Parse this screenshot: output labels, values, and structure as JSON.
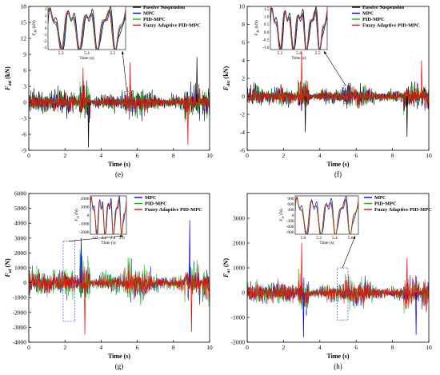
{
  "chart_data": [
    {
      "type": "line",
      "panel_label": "(e)",
      "ylabel": "F_dtf (kN)",
      "ylabel_main": "F",
      "ylabel_sub": "dtf",
      "ylabel_unit": "(kN)",
      "xlabel": "Time (s)",
      "xlim": [
        0,
        10
      ],
      "ylim": [
        -9,
        18
      ],
      "xticks": [
        0,
        2,
        4,
        6,
        8,
        10
      ],
      "yticks": [
        -9,
        -6,
        -3,
        0,
        3,
        6,
        9,
        12,
        15,
        18
      ],
      "legend": "top-right",
      "series": [
        {
          "name": "Passive Suspension",
          "color": "#000000",
          "amplitude": 3.2
        },
        {
          "name": "MPC",
          "color": "#0000ff",
          "amplitude": 2.4
        },
        {
          "name": "PID-MPC",
          "color": "#00cc00",
          "amplitude": 2.6
        },
        {
          "name": "Fuzzy Adaptive PID-MPC",
          "color": "#ff0000",
          "amplitude": 2.2
        }
      ],
      "peaks": [
        {
          "x": 3.0,
          "y": 6.5
        },
        {
          "x": 3.3,
          "y": -8.5
        },
        {
          "x": 5.6,
          "y": 7.5
        },
        {
          "x": 9.3,
          "y": 8.5
        },
        {
          "x": 8.8,
          "y": -8.0
        }
      ],
      "inset": {
        "ylabel_main": "F",
        "ylabel_sub": "dtf",
        "ylabel_unit": "(kN)",
        "xlabel": "Time (s)",
        "xlim": [
          5.25,
          5.55
        ],
        "ylim": [
          -3,
          4
        ],
        "xticks": [
          "5.3",
          "5.4",
          "5.5"
        ],
        "yticks": [
          "3",
          "2",
          "1",
          "0",
          "-1",
          "-2",
          "-3"
        ]
      },
      "zoom_box": {
        "x": [
          5.3,
          5.55
        ],
        "y": [
          -1.5,
          2.0
        ]
      }
    },
    {
      "type": "line",
      "panel_label": "(f)",
      "ylabel": "F_dtr (kN)",
      "ylabel_main": "F",
      "ylabel_sub": "dtr",
      "ylabel_unit": "(kN)",
      "xlabel": "Time (s)",
      "xlim": [
        0,
        10
      ],
      "ylim": [
        -6,
        10
      ],
      "xticks": [
        0,
        2,
        4,
        6,
        8,
        10
      ],
      "yticks": [
        -6,
        -4,
        -2,
        0,
        2,
        4,
        6,
        8,
        10
      ],
      "legend": "top-right",
      "series": [
        {
          "name": "Passive Suspension",
          "color": "#000000",
          "amplitude": 1.5
        },
        {
          "name": "MPC",
          "color": "#0000ff",
          "amplitude": 1.2
        },
        {
          "name": "PID-MPC",
          "color": "#00cc00",
          "amplitude": 1.3
        },
        {
          "name": "Fuzzy Adaptive PID-MPC",
          "color": "#ff0000",
          "amplitude": 1.1
        }
      ],
      "peaks": [
        {
          "x": 3.0,
          "y": 5.0
        },
        {
          "x": 3.2,
          "y": -4.0
        },
        {
          "x": 9.6,
          "y": 4.0
        },
        {
          "x": 8.8,
          "y": -4.5
        }
      ],
      "inset": {
        "ylabel_main": "F",
        "ylabel_sub": "dtr",
        "ylabel_unit": "(kN)",
        "xlabel": "Time (s)",
        "xlim": [
          5.25,
          5.55
        ],
        "ylim": [
          -1.0,
          1.5
        ],
        "xticks": [
          "5.3",
          "5.4",
          "5.5"
        ],
        "yticks": [
          "1.5",
          "1.0",
          "0.5",
          "0.0",
          "-0.5",
          "-1.0"
        ]
      },
      "zoom_box": {
        "x": [
          5.3,
          5.55
        ],
        "y": [
          -0.8,
          1.2
        ]
      }
    },
    {
      "type": "line",
      "panel_label": "(g)",
      "ylabel": "F_uf (N)",
      "ylabel_main": "F",
      "ylabel_sub": "uf",
      "ylabel_unit": "(N)",
      "xlabel": "Time (s)",
      "xlim": [
        0,
        10
      ],
      "ylim": [
        -4000,
        6000
      ],
      "xticks": [
        0,
        2,
        4,
        6,
        8,
        10
      ],
      "yticks": [
        -4000,
        -3000,
        -2000,
        -1000,
        0,
        1000,
        2000,
        3000,
        4000,
        5000,
        6000
      ],
      "legend": "top-right",
      "series": [
        {
          "name": "MPC",
          "color": "#0000ff",
          "amplitude": 1200
        },
        {
          "name": "PID-MPC",
          "color": "#00cc00",
          "amplitude": 1300
        },
        {
          "name": "Fuzzy Adaptive PID-MPC",
          "color": "#ff0000",
          "amplitude": 1000
        }
      ],
      "peaks": [
        {
          "x": 3.1,
          "y": -3500
        },
        {
          "x": 8.9,
          "y": 4200
        },
        {
          "x": 9.0,
          "y": -3300
        },
        {
          "x": 2.9,
          "y": 3000
        }
      ],
      "inset": {
        "ylabel_main": "F",
        "ylabel_sub": "uf",
        "ylabel_unit": "(N)",
        "xlabel": "Time (s)",
        "xlim": [
          1.95,
          2.6
        ],
        "ylim": [
          -2000,
          2000
        ],
        "xticks": [
          "2.0",
          "2.2",
          "2.4",
          "2.6"
        ],
        "yticks": [
          "2000",
          "1000",
          "0",
          "-1000",
          "-2000"
        ]
      },
      "zoom_box": {
        "x": [
          1.9,
          2.55
        ],
        "y": [
          -2600,
          2800
        ]
      }
    },
    {
      "type": "line",
      "panel_label": "(h)",
      "ylabel": "F_ur (N)",
      "ylabel_main": "F",
      "ylabel_sub": "ur",
      "ylabel_unit": "(N)",
      "xlabel": "Time (s)",
      "xlim": [
        0,
        10
      ],
      "ylim": [
        -2000,
        4000
      ],
      "xticks": [
        0,
        2,
        4,
        6,
        8,
        10
      ],
      "yticks": [
        -2000,
        -1000,
        0,
        1000,
        2000,
        3000
      ],
      "legend": "top-right",
      "series": [
        {
          "name": "MPC",
          "color": "#0000ff",
          "amplitude": 600
        },
        {
          "name": "PID-MPC",
          "color": "#00cc00",
          "amplitude": 620
        },
        {
          "name": "Fuzzy Adaptive PID-MPC",
          "color": "#ff0000",
          "amplitude": 560
        }
      ],
      "peaks": [
        {
          "x": 3.0,
          "y": 2000
        },
        {
          "x": 3.1,
          "y": -1800
        },
        {
          "x": 8.8,
          "y": 1400
        },
        {
          "x": 9.3,
          "y": -1700
        }
      ],
      "inset": {
        "ylabel_main": "F",
        "ylabel_sub": "ur",
        "ylabel_unit": "(N)",
        "xlabel": "Time (s)",
        "xlim": [
          4.9,
          5.6
        ],
        "ylim": [
          -900,
          900
        ],
        "xticks": [
          "5.0",
          "5.2",
          "5.4",
          "5.6"
        ],
        "yticks": [
          "900",
          "600",
          "300",
          "0",
          "-300",
          "-600",
          "-900"
        ]
      },
      "zoom_box": {
        "x": [
          4.95,
          5.55
        ],
        "y": [
          -1100,
          1000
        ]
      }
    }
  ]
}
